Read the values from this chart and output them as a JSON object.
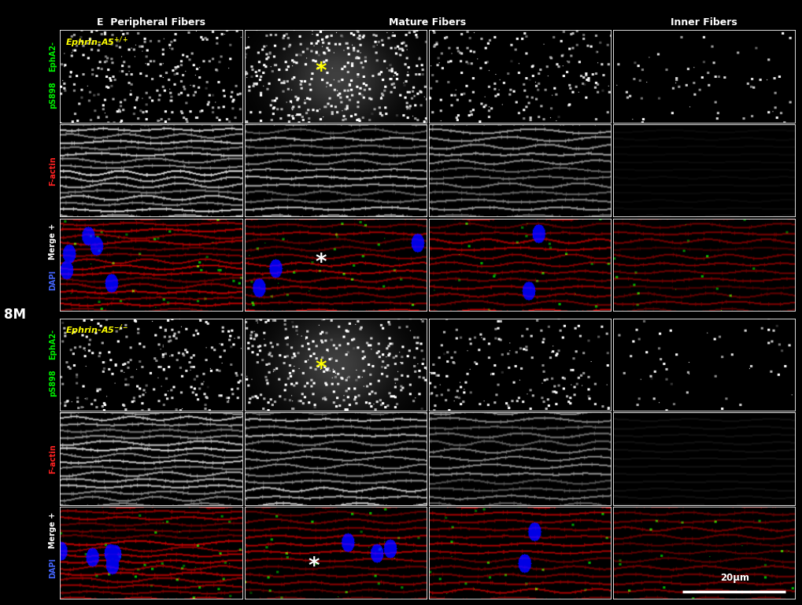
{
  "title": "8M",
  "col_headers": [
    "E  Peripheral Fibers",
    "Mature Fibers",
    "Inner Fibers"
  ],
  "mature_fibers_span": [
    1,
    2
  ],
  "row_labels_1": [
    "EphA2-\npS898",
    "F-actin",
    "Merge +\nDAPI"
  ],
  "row_labels_2": [
    "EphA2-\npS898",
    "F-actin",
    "Merge +\nDAPI"
  ],
  "label_colors": {
    "EphA2-": "#00ff00",
    "pS898": "#00ff00",
    "F-actin": "#ff2222",
    "Merge +": "#ffffff",
    "DAPI": "#4488ff"
  },
  "genotype1": "Ephrin-A5",
  "genotype1_sup": "+/+",
  "genotype2": "Ephrin-A5",
  "genotype2_sup": "-/-",
  "genotype_color": "#ffff00",
  "asterisk_yellow": "*",
  "asterisk_white": "*",
  "scale_bar_text": "20μm",
  "background": "#000000",
  "n_rows": 6,
  "n_cols": 4,
  "fig_width": 10.2,
  "fig_height": 7.69,
  "dpi": 100
}
